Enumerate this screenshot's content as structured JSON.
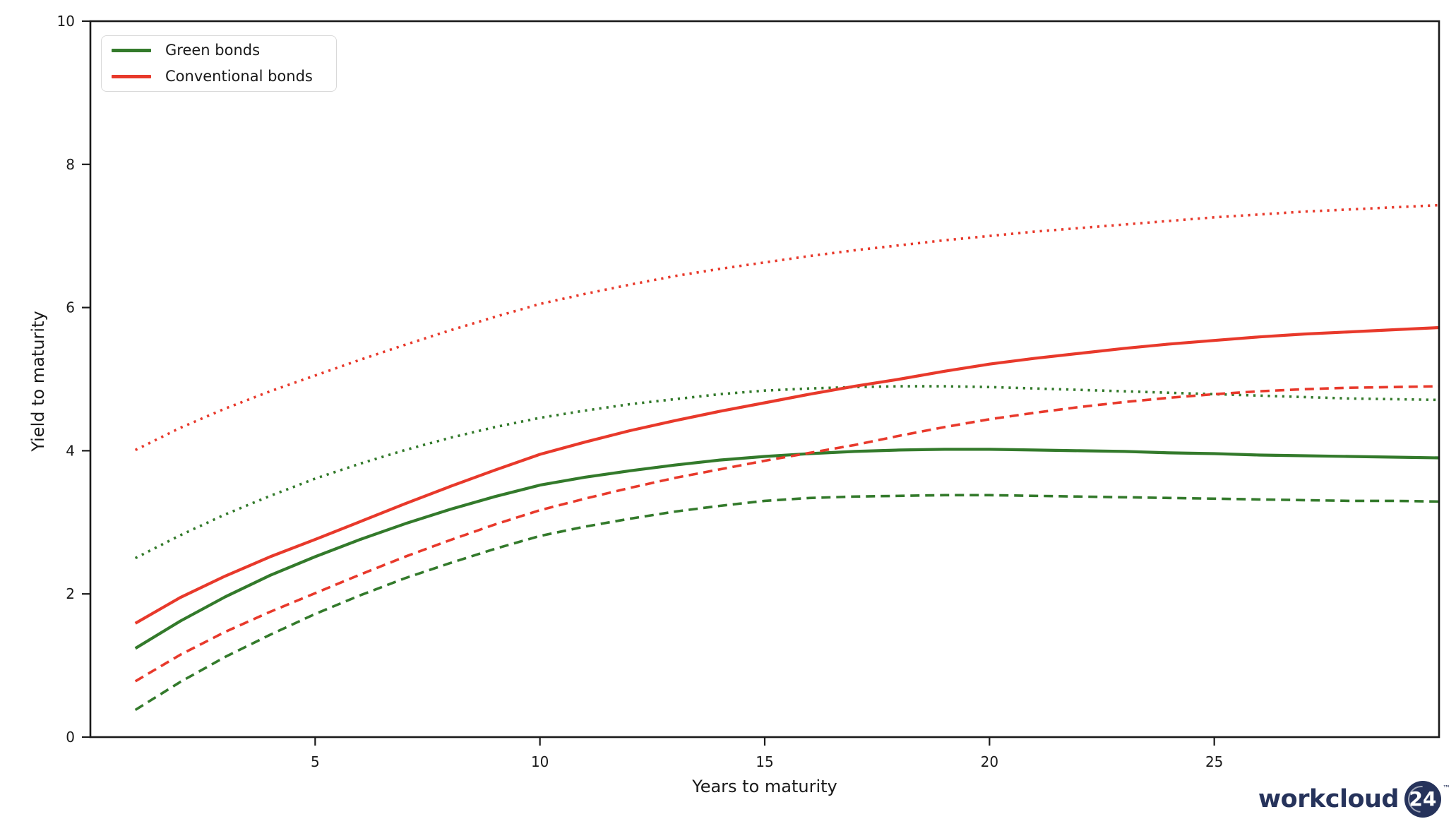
{
  "page": {
    "background": "#ffffff"
  },
  "colors": {
    "axis": "#1a1a1a",
    "tick_label": "#1a1a1a",
    "green": "#337a2b",
    "red": "#e8392b",
    "legend_border": "#d9d9d9",
    "watermark_navy": "#26335b"
  },
  "chart_data": {
    "type": "line",
    "title": "",
    "xlabel": "Years to maturity",
    "ylabel": "Yield to maturity",
    "xlim": [
      0,
      30
    ],
    "ylim": [
      0,
      10
    ],
    "xticks": [
      5,
      10,
      15,
      20,
      25
    ],
    "yticks": [
      0,
      2,
      4,
      6,
      8,
      10
    ],
    "grid": false,
    "legend_position": "upper-left",
    "x": [
      1,
      2,
      3,
      4,
      5,
      6,
      7,
      8,
      9,
      10,
      11,
      12,
      13,
      14,
      15,
      16,
      17,
      18,
      19,
      20,
      21,
      22,
      23,
      24,
      25,
      26,
      27,
      28,
      29,
      30
    ],
    "series": [
      {
        "name": "Green bonds upper band",
        "group": "Green bonds",
        "style": "dotted",
        "color": "#337a2b",
        "width": 3.6,
        "values": [
          2.5,
          2.82,
          3.11,
          3.37,
          3.61,
          3.82,
          4.01,
          4.18,
          4.33,
          4.46,
          4.56,
          4.65,
          4.72,
          4.79,
          4.84,
          4.87,
          4.89,
          4.9,
          4.9,
          4.89,
          4.87,
          4.85,
          4.83,
          4.81,
          4.79,
          4.77,
          4.75,
          4.73,
          4.72,
          4.71
        ]
      },
      {
        "name": "Green bonds lower band",
        "group": "Green bonds",
        "style": "dashed",
        "color": "#337a2b",
        "width": 3.6,
        "values": [
          0.38,
          0.77,
          1.12,
          1.43,
          1.72,
          1.98,
          2.22,
          2.43,
          2.63,
          2.81,
          2.94,
          3.05,
          3.15,
          3.23,
          3.3,
          3.34,
          3.36,
          3.37,
          3.38,
          3.38,
          3.37,
          3.36,
          3.35,
          3.34,
          3.33,
          3.32,
          3.31,
          3.3,
          3.3,
          3.29
        ]
      },
      {
        "name": "Green bonds mean",
        "group": "Green bonds",
        "style": "solid",
        "color": "#337a2b",
        "width": 4.2,
        "values": [
          1.24,
          1.62,
          1.96,
          2.26,
          2.52,
          2.76,
          2.98,
          3.18,
          3.36,
          3.52,
          3.63,
          3.72,
          3.8,
          3.87,
          3.92,
          3.96,
          3.99,
          4.01,
          4.02,
          4.02,
          4.01,
          4.0,
          3.99,
          3.97,
          3.96,
          3.94,
          3.93,
          3.92,
          3.91,
          3.9
        ]
      },
      {
        "name": "Conventional bonds upper band",
        "group": "Conventional bonds",
        "style": "dotted",
        "color": "#e8392b",
        "width": 3.6,
        "values": [
          4.01,
          4.32,
          4.59,
          4.83,
          5.05,
          5.27,
          5.48,
          5.68,
          5.87,
          6.05,
          6.19,
          6.32,
          6.44,
          6.54,
          6.63,
          6.72,
          6.8,
          6.87,
          6.94,
          7.0,
          7.06,
          7.11,
          7.16,
          7.21,
          7.26,
          7.3,
          7.34,
          7.37,
          7.4,
          7.43
        ]
      },
      {
        "name": "Conventional bonds lower band",
        "group": "Conventional bonds",
        "style": "dashed",
        "color": "#e8392b",
        "width": 3.6,
        "values": [
          0.78,
          1.15,
          1.47,
          1.75,
          2.01,
          2.27,
          2.52,
          2.75,
          2.97,
          3.17,
          3.33,
          3.48,
          3.62,
          3.74,
          3.86,
          3.97,
          4.08,
          4.21,
          4.33,
          4.44,
          4.53,
          4.61,
          4.68,
          4.74,
          4.79,
          4.83,
          4.86,
          4.88,
          4.89,
          4.9
        ]
      },
      {
        "name": "Conventional bonds mean",
        "group": "Conventional bonds",
        "style": "solid",
        "color": "#e8392b",
        "width": 4.2,
        "values": [
          1.59,
          1.95,
          2.25,
          2.52,
          2.76,
          3.01,
          3.26,
          3.5,
          3.73,
          3.95,
          4.12,
          4.28,
          4.42,
          4.55,
          4.67,
          4.79,
          4.9,
          5.0,
          5.11,
          5.21,
          5.29,
          5.36,
          5.43,
          5.49,
          5.54,
          5.59,
          5.63,
          5.66,
          5.69,
          5.72
        ]
      }
    ],
    "legend": [
      {
        "label": "Green bonds",
        "color": "#337a2b"
      },
      {
        "label": "Conventional bonds",
        "color": "#e8392b"
      }
    ]
  },
  "watermark": {
    "brand": "workcloud",
    "badge": "24",
    "trademark": "™"
  }
}
